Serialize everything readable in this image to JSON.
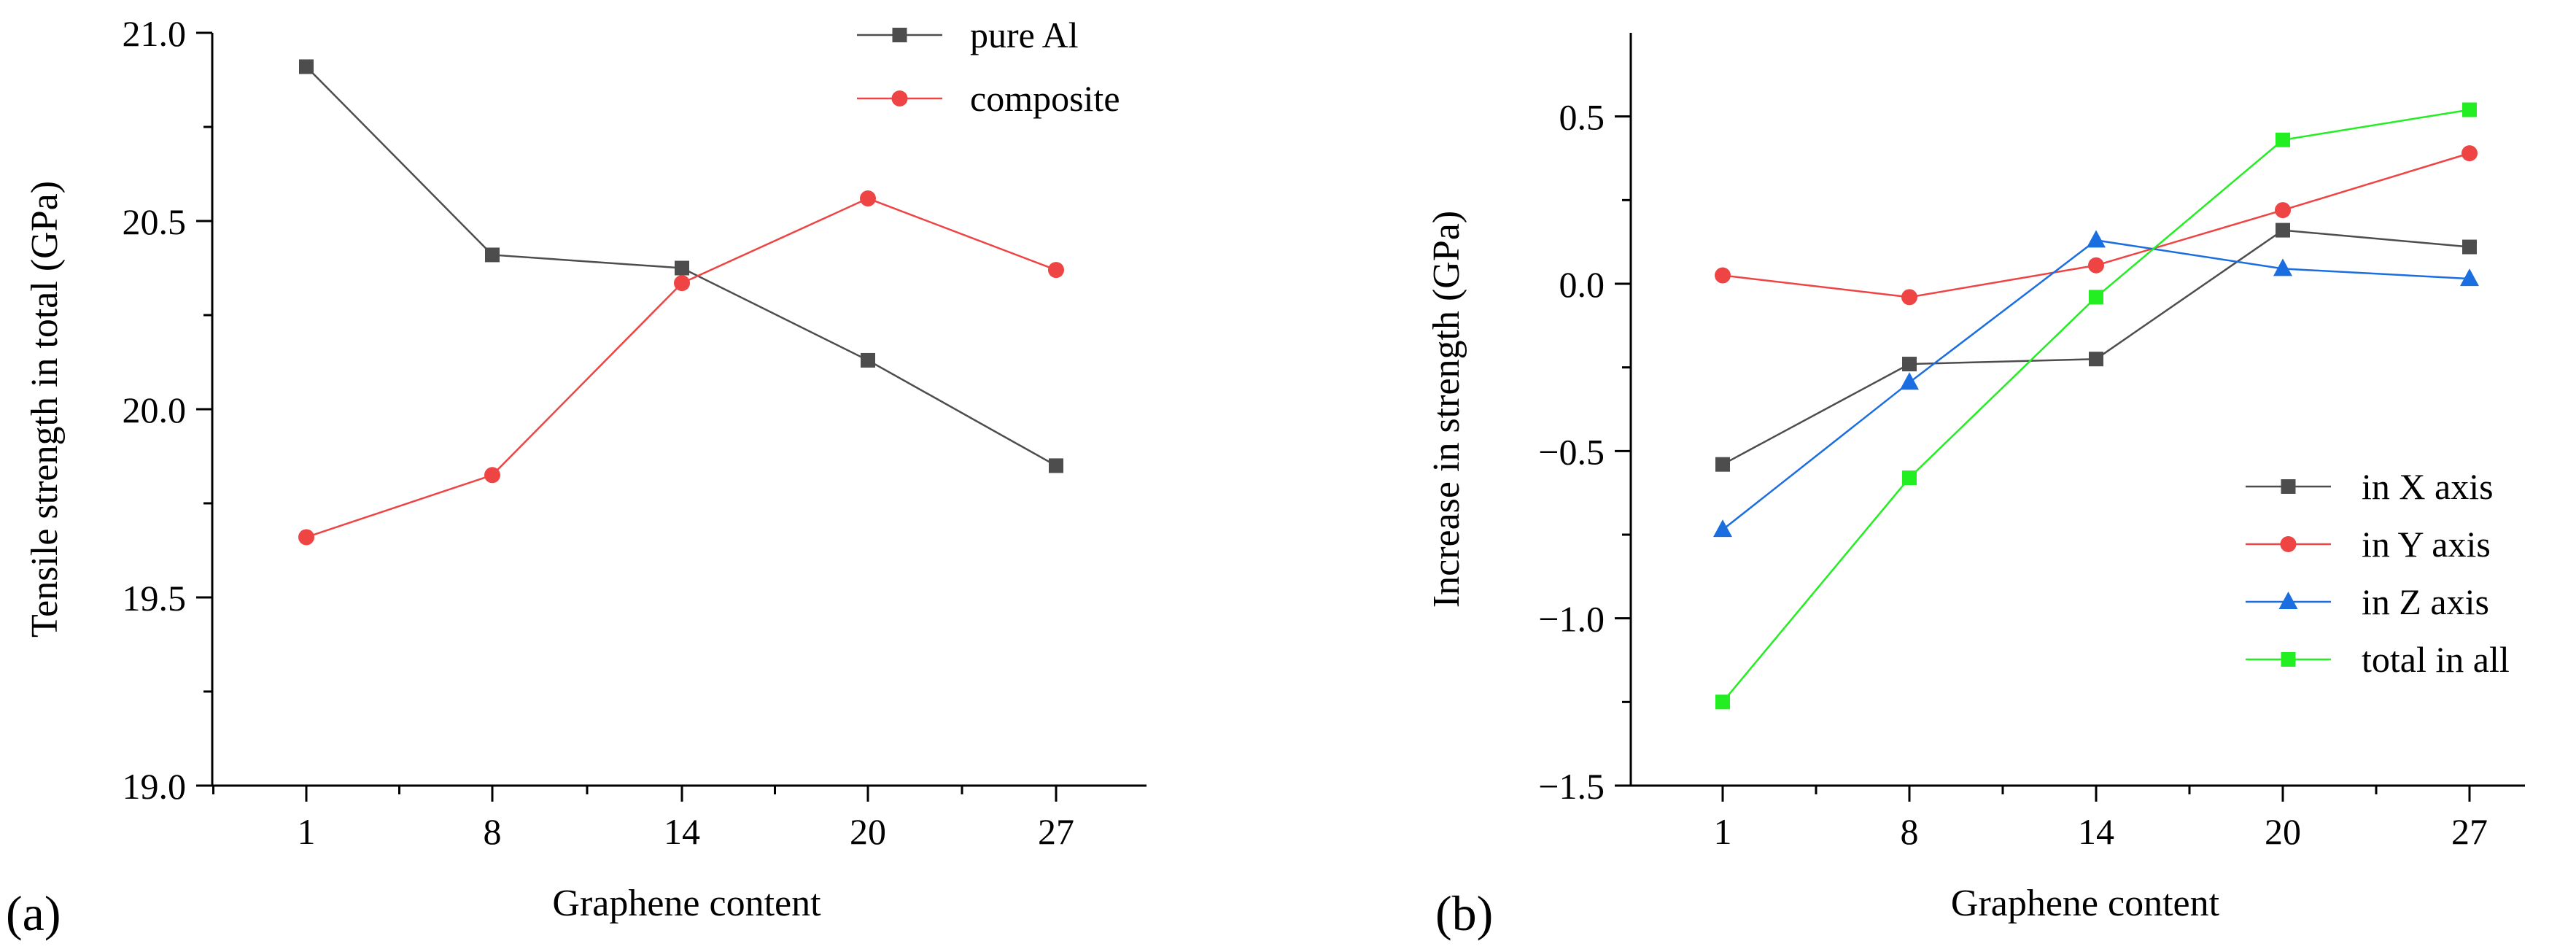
{
  "chart_data": [
    {
      "type": "line",
      "panel_label": "(a)",
      "title": "",
      "xlabel": "Graphene content",
      "ylabel": "Tensile strength in total (GPa)",
      "categories": [
        "1",
        "8",
        "14",
        "20",
        "27"
      ],
      "ylim": [
        19.0,
        21.0
      ],
      "yticks": [
        "19.0",
        "19.5",
        "20.0",
        "20.5",
        "21.0"
      ],
      "legend_position": "top-right",
      "series": [
        {
          "name": "pure Al",
          "marker": "square",
          "color": "#4d4d4d",
          "values": [
            20.91,
            20.41,
            20.375,
            20.13,
            19.85
          ]
        },
        {
          "name": "composite",
          "marker": "circle",
          "color": "#ee4444",
          "values": [
            19.66,
            19.825,
            20.335,
            20.56,
            20.37
          ]
        }
      ]
    },
    {
      "type": "line",
      "panel_label": "(b)",
      "title": "",
      "xlabel": "Graphene content",
      "ylabel": "Increase in strength (GPa)",
      "categories": [
        "1",
        "8",
        "14",
        "20",
        "27"
      ],
      "ylim": [
        -1.5,
        0.75
      ],
      "yticks": [
        "−1.5",
        "−1.0",
        "−0.5",
        "0.0",
        "0.5"
      ],
      "legend_position": "bottom-right",
      "series": [
        {
          "name": "in X axis",
          "marker": "square",
          "color": "#4d4d4d",
          "values": [
            -0.54,
            -0.24,
            -0.225,
            0.16,
            0.11
          ]
        },
        {
          "name": "in Y axis",
          "marker": "circle",
          "color": "#ee4444",
          "values": [
            0.025,
            -0.04,
            0.055,
            0.22,
            0.39
          ]
        },
        {
          "name": "in Z axis",
          "marker": "triangle",
          "color": "#1a6ee0",
          "values": [
            -0.735,
            -0.295,
            0.13,
            0.045,
            0.015
          ]
        },
        {
          "name": "total in all",
          "marker": "square",
          "color": "#22ee22",
          "values": [
            -1.25,
            -0.58,
            -0.04,
            0.43,
            0.52
          ]
        }
      ]
    }
  ]
}
